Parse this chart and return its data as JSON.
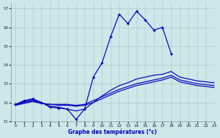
{
  "title": "Graphe des températures (°c)",
  "background_color": "#cce8e8",
  "grid_color": "#aacccc",
  "line_color": "#0000bb",
  "xlim": [
    -0.5,
    23
  ],
  "ylim": [
    11,
    17.3
  ],
  "yticks": [
    11,
    12,
    13,
    14,
    15,
    16,
    17
  ],
  "xticks": [
    0,
    1,
    2,
    3,
    4,
    5,
    6,
    7,
    8,
    9,
    10,
    11,
    12,
    13,
    14,
    15,
    16,
    17,
    18,
    19,
    20,
    21,
    22,
    23
  ],
  "curve1_x": [
    0,
    1,
    2,
    3,
    4,
    5,
    6,
    7,
    8,
    9,
    10,
    11,
    12,
    13,
    14,
    15,
    16,
    17,
    18
  ],
  "curve1_y": [
    11.9,
    12.1,
    12.2,
    12.0,
    11.75,
    11.7,
    11.65,
    11.1,
    11.65,
    13.35,
    14.1,
    15.5,
    16.7,
    16.2,
    16.85,
    16.4,
    15.85,
    16.0,
    14.6
  ],
  "curve2_x": [
    0,
    1,
    2,
    3,
    4,
    5,
    6,
    7,
    8,
    9,
    10,
    11,
    12,
    13,
    14,
    15,
    16,
    17,
    18,
    19,
    20,
    21,
    22,
    23
  ],
  "curve2_y": [
    11.9,
    12.05,
    12.15,
    12.0,
    11.8,
    11.75,
    11.65,
    11.55,
    11.65,
    12.0,
    12.35,
    12.65,
    12.9,
    13.05,
    13.25,
    13.35,
    13.45,
    13.5,
    13.65,
    13.35,
    13.25,
    13.15,
    13.1,
    13.05
  ],
  "curve3_x": [
    0,
    1,
    2,
    3,
    4,
    5,
    6,
    7,
    8,
    9,
    10,
    11,
    12,
    13,
    14,
    15,
    16,
    17,
    18,
    19,
    20,
    21,
    22,
    23
  ],
  "curve3_y": [
    11.85,
    12.0,
    12.1,
    11.95,
    11.9,
    11.9,
    11.9,
    11.85,
    11.9,
    12.1,
    12.3,
    12.5,
    12.7,
    12.85,
    13.0,
    13.1,
    13.2,
    13.3,
    13.45,
    13.2,
    13.1,
    13.0,
    12.95,
    12.9
  ],
  "curve4_x": [
    0,
    2,
    3,
    4,
    5,
    6,
    7,
    8,
    9,
    10,
    11,
    12,
    13,
    14,
    15,
    16,
    17,
    18,
    19,
    20,
    21,
    22,
    23
  ],
  "curve4_y": [
    11.85,
    12.05,
    11.95,
    11.9,
    11.85,
    11.85,
    11.8,
    11.85,
    12.0,
    12.2,
    12.4,
    12.6,
    12.75,
    12.9,
    13.0,
    13.1,
    13.2,
    13.35,
    13.1,
    13.0,
    12.9,
    12.85,
    12.8
  ]
}
